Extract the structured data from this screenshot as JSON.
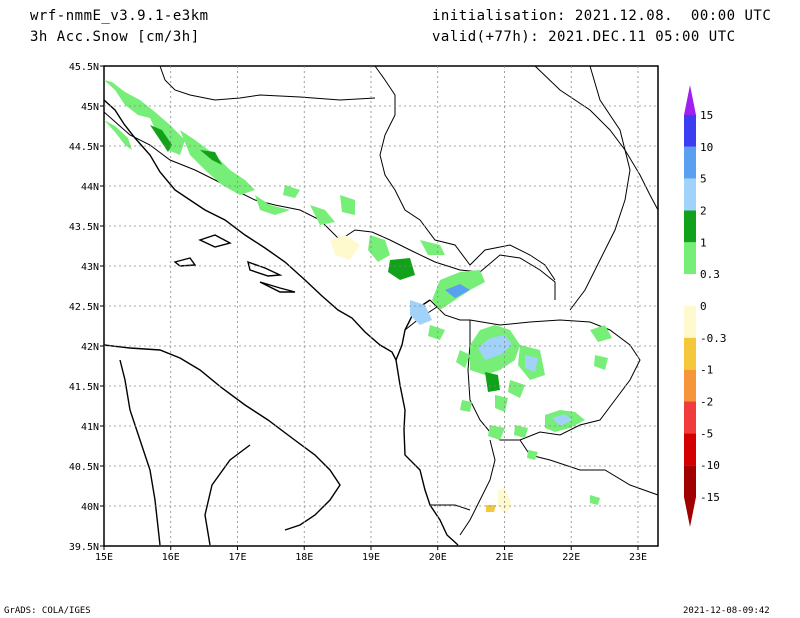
{
  "header": {
    "model": "wrf-nmmE_v3.9.1-e3km",
    "field": "3h Acc.Snow [cm/3h]",
    "initialisation": "initialisation: 2021.12.08.  00:00 UTC",
    "valid": "valid(+77h): 2021.DEC.11 05:00 UTC"
  },
  "footer": {
    "credit": "GrADS: COLA/IGES",
    "timestamp": "2021-12-08-09:42"
  },
  "map": {
    "lat_labels": [
      "45.5N",
      "45N",
      "44.5N",
      "44N",
      "43.5N",
      "43N",
      "42.5N",
      "42N",
      "41.5N",
      "41N",
      "40.5N",
      "40N",
      "39.5N"
    ],
    "lon_labels": [
      "15E",
      "16E",
      "17E",
      "18E",
      "19E",
      "20E",
      "21E",
      "22E",
      "23E"
    ],
    "lon_range": [
      15,
      23.3
    ],
    "lat_range": [
      39.5,
      45.5
    ]
  },
  "colorbar": {
    "labels": [
      "15",
      "10",
      "5",
      "2",
      "1",
      "0.3",
      "0",
      "-0.3",
      "-1",
      "-2",
      "-5",
      "-10",
      "-15"
    ],
    "colors": [
      "#a020f0",
      "#3c3cf0",
      "#5aa0f0",
      "#a0d2fa",
      "#11a11a",
      "#77ee77",
      "#ffffff",
      "#fffacd",
      "#f5c83c",
      "#f5963c",
      "#f03c3c",
      "#d20000",
      "#a00000"
    ]
  }
}
